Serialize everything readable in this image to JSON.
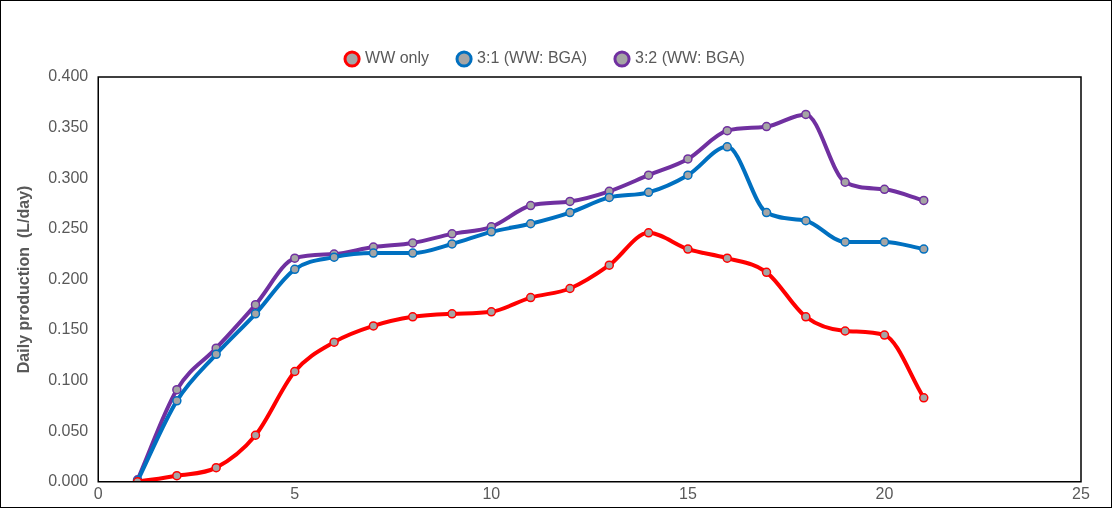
{
  "chart_data": {
    "type": "line",
    "ylabel": "Daily production  (L/day)",
    "x": [
      1,
      2,
      3,
      4,
      5,
      6,
      7,
      8,
      9,
      10,
      11,
      12,
      13,
      14,
      15,
      16,
      17,
      18,
      19,
      20,
      21
    ],
    "series": [
      {
        "name": "WW only",
        "color": "#ff0000",
        "values": [
          0,
          0.006,
          0.014,
          0.046,
          0.109,
          0.138,
          0.154,
          0.163,
          0.166,
          0.168,
          0.182,
          0.191,
          0.214,
          0.246,
          0.23,
          0.221,
          0.207,
          0.163,
          0.149,
          0.145,
          0.083
        ]
      },
      {
        "name": "3:1 (WW: BGA)",
        "color": "#0070c0",
        "values": [
          0.001,
          0.08,
          0.126,
          0.166,
          0.21,
          0.222,
          0.226,
          0.226,
          0.235,
          0.247,
          0.255,
          0.266,
          0.281,
          0.286,
          0.303,
          0.331,
          0.266,
          0.258,
          0.237,
          0.237,
          0.23
        ]
      },
      {
        "name": "3:2 (WW: BGA)",
        "color": "#7030a0",
        "values": [
          0.002,
          0.091,
          0.132,
          0.175,
          0.221,
          0.225,
          0.232,
          0.236,
          0.245,
          0.252,
          0.273,
          0.277,
          0.287,
          0.303,
          0.319,
          0.347,
          0.351,
          0.363,
          0.296,
          0.289,
          0.278
        ]
      }
    ],
    "xlim": [
      0,
      25
    ],
    "xticks": [
      0,
      5,
      10,
      15,
      20,
      25
    ],
    "ylim": [
      0,
      0.4
    ],
    "yticks": [
      {
        "value": 0,
        "label": "0.000"
      },
      {
        "value": 0.05,
        "label": "0.050"
      },
      {
        "value": 0.1,
        "label": "0.100"
      },
      {
        "value": 0.15,
        "label": "0.150"
      },
      {
        "value": 0.2,
        "label": "0.200"
      },
      {
        "value": 0.25,
        "label": "0.250"
      },
      {
        "value": 0.3,
        "label": "0.300"
      },
      {
        "value": 0.35,
        "label": "0.350"
      },
      {
        "value": 0.4,
        "label": "0.400"
      }
    ],
    "grid": false,
    "legend": "top",
    "marker": "circle",
    "line_style": "solid"
  }
}
